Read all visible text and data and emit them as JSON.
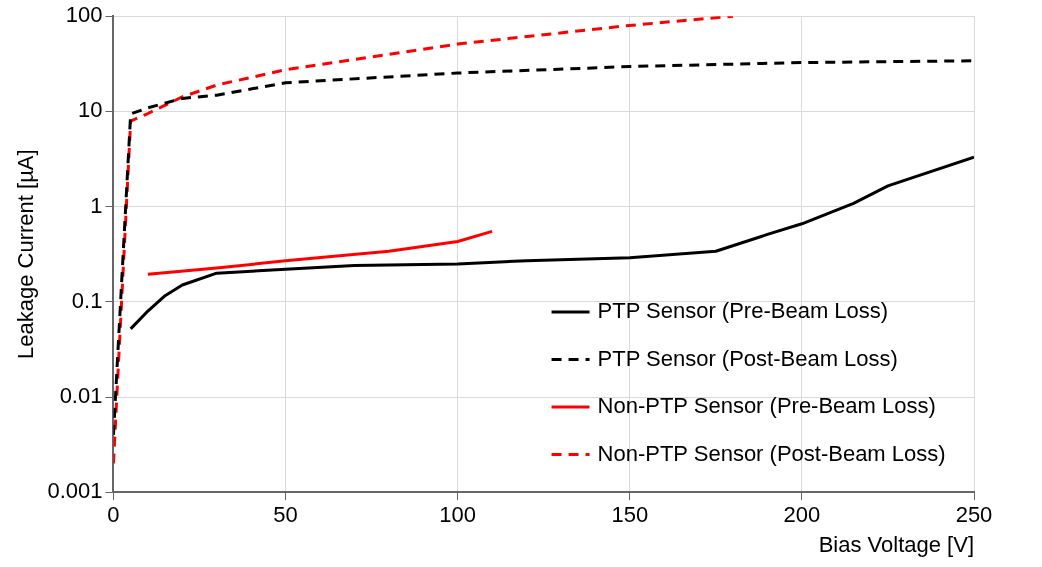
{
  "chart_data": {
    "type": "line",
    "xlabel": "Bias Voltage [V]",
    "ylabel": "Leakage Current [µA]",
    "log": "y",
    "grid": true,
    "legend": "bottom right",
    "marker": "none",
    "xlim": [
      0,
      250
    ],
    "xticks": [
      0,
      50,
      100,
      150,
      200,
      250
    ],
    "ylim": [
      0.001,
      100
    ],
    "yticks": [
      0.001,
      0.01,
      0.1,
      1,
      10,
      100
    ],
    "series": [
      {
        "name": "PTP Sensor (Pre-Beam Loss)",
        "color": "#000000",
        "line_style": "solid",
        "x": [
          5,
          10,
          15,
          20,
          30,
          50,
          70,
          100,
          120,
          150,
          175,
          190,
          200,
          215,
          225,
          250
        ],
        "values": [
          0.052,
          0.08,
          0.116,
          0.15,
          0.2,
          0.22,
          0.24,
          0.25,
          0.27,
          0.29,
          0.34,
          0.51,
          0.66,
          1.08,
          1.65,
          3.3
        ]
      },
      {
        "name": "PTP Sensor (Post-Beam Loss)",
        "color": "#000000",
        "line_style": "dashed",
        "x": [
          0,
          5,
          10,
          20,
          30,
          50,
          100,
          150,
          200,
          250
        ],
        "values": [
          0.004,
          9.4,
          10.9,
          13.7,
          14.8,
          20,
          25.3,
          29.6,
          32.6,
          34
        ]
      },
      {
        "name": "Non-PTP Sensor (Pre-Beam Loss)",
        "color": "#ff0000",
        "line_style": "solid",
        "x": [
          10,
          30,
          50,
          80,
          100,
          110
        ],
        "values": [
          0.195,
          0.226,
          0.27,
          0.34,
          0.43,
          0.55
        ]
      },
      {
        "name": "Non-PTP Sensor (Post-Beam Loss)",
        "color": "#ff0000",
        "line_style": "dashed",
        "x": [
          0,
          5,
          10,
          20,
          30,
          50,
          100,
          150,
          180
        ],
        "values": [
          0.002,
          7.9,
          9.5,
          14.2,
          18.9,
          27.4,
          51,
          80,
          100
        ]
      }
    ]
  }
}
